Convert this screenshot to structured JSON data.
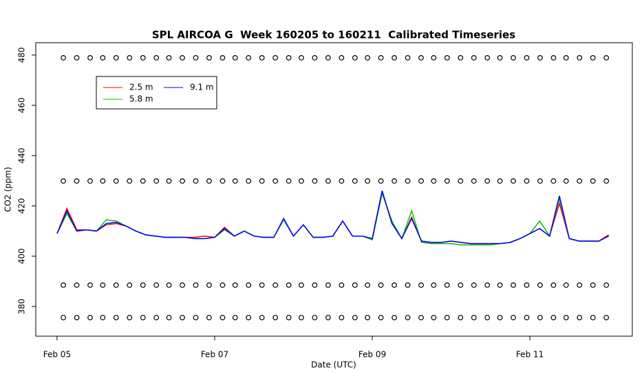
{
  "chart_data": {
    "type": "line",
    "title": "SPL AIRCOA G  Week 160205 to 160211  Calibrated Timeseries",
    "x_label": "Date (UTC)",
    "y_label": "CO2 (ppm)",
    "xlim": [
      -0.27,
      7.3
    ],
    "ylim": [
      368.2,
      484.9
    ],
    "xticks": [
      {
        "value": 0,
        "label": "Feb 05"
      },
      {
        "value": 2,
        "label": "Feb 07"
      },
      {
        "value": 4,
        "label": "Feb 09"
      },
      {
        "value": 6,
        "label": "Feb 11"
      }
    ],
    "yticks": [
      380,
      400,
      420,
      440,
      460,
      480
    ],
    "x": [
      0,
      0.125,
      0.25,
      0.375,
      0.5,
      0.625,
      0.75,
      0.875,
      1,
      1.125,
      1.25,
      1.375,
      1.5,
      1.625,
      1.75,
      1.875,
      2,
      2.125,
      2.25,
      2.375,
      2.5,
      2.625,
      2.75,
      2.875,
      3,
      3.125,
      3.25,
      3.375,
      3.5,
      3.625,
      3.75,
      3.875,
      4,
      4.125,
      4.25,
      4.375,
      4.5,
      4.625,
      4.75,
      4.875,
      5,
      5.125,
      5.25,
      5.375,
      5.5,
      5.625,
      5.75,
      5.875,
      6,
      6.125,
      6.25,
      6.375,
      6.5,
      6.625,
      6.75,
      6.875,
      7
    ],
    "series": [
      {
        "name": "2.5 m",
        "color": "#ff0000",
        "values": [
          409,
          419,
          410.5,
          410.5,
          410,
          412.5,
          413,
          412,
          410,
          408.5,
          408,
          407.5,
          407.5,
          407.5,
          407.5,
          408,
          407.5,
          411.5,
          408,
          410,
          408,
          407.5,
          407.5,
          414.5,
          408,
          412.5,
          407.5,
          407.5,
          408,
          414,
          408,
          408,
          407,
          426,
          413,
          407,
          415.5,
          406,
          405.5,
          405.5,
          406,
          405.5,
          405,
          405,
          405,
          405,
          405.5,
          407,
          409,
          411,
          408,
          421,
          407,
          406,
          406,
          406,
          408.5
        ]
      },
      {
        "name": "5.8 m",
        "color": "#00c000",
        "values": [
          409,
          417,
          410,
          410.5,
          410,
          414.5,
          414,
          412,
          410,
          408.5,
          408,
          407.5,
          407.5,
          407.5,
          407,
          407,
          407.5,
          410.5,
          408,
          410,
          408,
          407.5,
          407.5,
          414.5,
          408,
          412.5,
          407.5,
          407.5,
          408,
          414,
          408,
          408,
          406.5,
          425,
          414,
          407,
          418,
          405.5,
          405,
          405,
          405,
          404.5,
          404.5,
          404.5,
          404.5,
          405,
          405.5,
          407,
          409,
          414,
          408,
          423,
          407,
          406,
          406,
          406,
          408
        ]
      },
      {
        "name": "9.1 m",
        "color": "#0000ff",
        "values": [
          409,
          418,
          410,
          410.5,
          410,
          413,
          413.5,
          412,
          410,
          408.5,
          408,
          407.5,
          407.5,
          407.5,
          407,
          407,
          407.5,
          411,
          408,
          410,
          408,
          407.5,
          407.5,
          415,
          408,
          412.5,
          407.5,
          407.5,
          408,
          414,
          408,
          408,
          407,
          426,
          413,
          407,
          415,
          406,
          405.5,
          405.5,
          406,
          405.5,
          405,
          405,
          405,
          405,
          405.5,
          407,
          409,
          411,
          408,
          424,
          407,
          406,
          406,
          406,
          408
        ]
      }
    ],
    "marker_x": [
      0.08,
      0.25,
      0.42,
      0.58,
      0.75,
      0.92,
      1.09,
      1.26,
      1.42,
      1.59,
      1.76,
      1.93,
      2.1,
      2.26,
      2.43,
      2.6,
      2.77,
      2.94,
      3.1,
      3.27,
      3.44,
      3.61,
      3.78,
      3.94,
      4.11,
      4.28,
      4.45,
      4.62,
      4.78,
      4.95,
      5.12,
      5.29,
      5.46,
      5.62,
      5.79,
      5.96,
      6.13,
      6.3,
      6.46,
      6.63,
      6.8,
      6.97
    ],
    "marker_y": [
      478.9,
      429.9,
      388.5,
      375.6
    ]
  }
}
